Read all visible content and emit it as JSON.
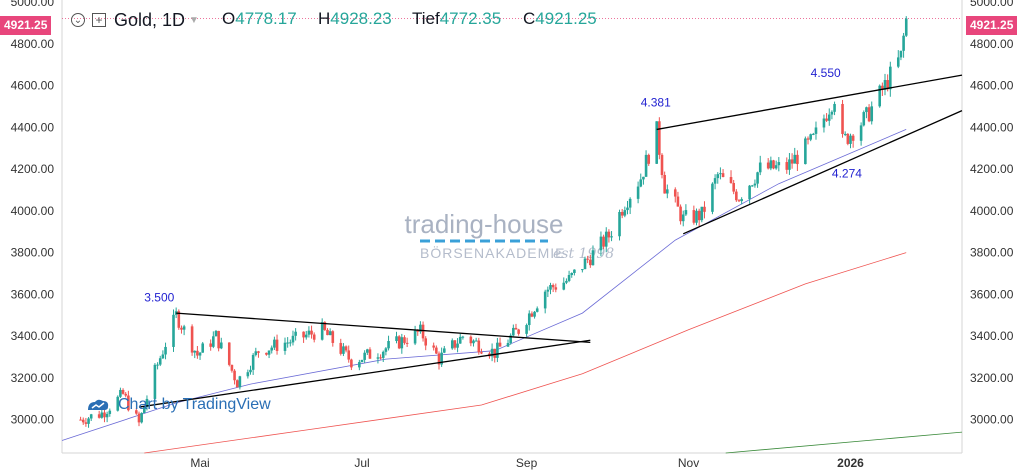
{
  "header": {
    "settings_icon": "chevron-circle-icon",
    "compare_icon": "plus-square-icon",
    "symbol": "Gold, 1D",
    "open_label": "O",
    "open": "4778.17",
    "high_label": "H",
    "high": "4928.23",
    "low_label": "Tief",
    "low": "4772.35",
    "close_label": "C",
    "close": "4921.25"
  },
  "last_price_tag": "4921.25",
  "watermark": {
    "brand": "trading-house",
    "sub": "BÖRSENAKADEMIE",
    "est": "est 1998"
  },
  "attribution": "Chart by TradingView",
  "annotations": [
    "3.500",
    "4.381",
    "4.550",
    "4.274"
  ],
  "colors": {
    "up": "#26a69a",
    "down": "#ef5350",
    "ma_short": "#6b6bd6",
    "ma_mid": "#ef5350",
    "ma_long": "#3a8a3a",
    "price_tag": "#e8467c"
  },
  "chart_data": {
    "type": "candlestick",
    "title": "Gold, 1D",
    "x_ticks": [
      "Mai",
      "Jul",
      "Sep",
      "Nov",
      "2026"
    ],
    "y_ticks": [
      "3000.00",
      "3200.00",
      "3400.00",
      "3600.00",
      "3800.00",
      "4000.00",
      "4200.00",
      "4400.00",
      "4600.00",
      "4800.00",
      "5000.00"
    ],
    "ylim": [
      2840,
      5010
    ],
    "legend": "none",
    "grid": false,
    "series": [
      {
        "name": "price",
        "anchors": [
          {
            "d": "2025-03-17",
            "v": 3000
          },
          {
            "d": "2025-03-25",
            "v": 3030
          },
          {
            "d": "2025-04-02",
            "v": 3120
          },
          {
            "d": "2025-04-08",
            "v": 2980
          },
          {
            "d": "2025-04-14",
            "v": 3230
          },
          {
            "d": "2025-04-22",
            "v": 3500
          },
          {
            "d": "2025-04-30",
            "v": 3310
          },
          {
            "d": "2025-05-07",
            "v": 3400
          },
          {
            "d": "2025-05-15",
            "v": 3180
          },
          {
            "d": "2025-05-23",
            "v": 3330
          },
          {
            "d": "2025-06-05",
            "v": 3380
          },
          {
            "d": "2025-06-16",
            "v": 3430
          },
          {
            "d": "2025-06-27",
            "v": 3280
          },
          {
            "d": "2025-07-08",
            "v": 3330
          },
          {
            "d": "2025-07-23",
            "v": 3420
          },
          {
            "d": "2025-07-30",
            "v": 3290
          },
          {
            "d": "2025-08-08",
            "v": 3400
          },
          {
            "d": "2025-08-20",
            "v": 3320
          },
          {
            "d": "2025-08-29",
            "v": 3430
          },
          {
            "d": "2025-09-08",
            "v": 3620
          },
          {
            "d": "2025-09-17",
            "v": 3670
          },
          {
            "d": "2025-09-25",
            "v": 3780
          },
          {
            "d": "2025-10-02",
            "v": 3880
          },
          {
            "d": "2025-10-08",
            "v": 4040
          },
          {
            "d": "2025-10-14",
            "v": 4160
          },
          {
            "d": "2025-10-20",
            "v": 4381
          },
          {
            "d": "2025-10-23",
            "v": 4120
          },
          {
            "d": "2025-10-30",
            "v": 3960
          },
          {
            "d": "2025-11-06",
            "v": 3980
          },
          {
            "d": "2025-11-12",
            "v": 4170
          },
          {
            "d": "2025-11-20",
            "v": 4070
          },
          {
            "d": "2025-11-28",
            "v": 4200
          },
          {
            "d": "2025-12-08",
            "v": 4210
          },
          {
            "d": "2025-12-18",
            "v": 4340
          },
          {
            "d": "2025-12-26",
            "v": 4550
          },
          {
            "d": "2025-12-29",
            "v": 4330
          },
          {
            "d": "2026-01-07",
            "v": 4450
          },
          {
            "d": "2026-01-14",
            "v": 4600
          },
          {
            "d": "2026-01-20",
            "v": 4740
          },
          {
            "d": "2026-01-22",
            "v": 4921
          }
        ]
      },
      {
        "name": "ma_short",
        "points": [
          {
            "d": "2025-03-10",
            "v": 2900
          },
          {
            "d": "2025-04-22",
            "v": 3080
          },
          {
            "d": "2025-05-20",
            "v": 3170
          },
          {
            "d": "2025-07-10",
            "v": 3290
          },
          {
            "d": "2025-08-20",
            "v": 3330
          },
          {
            "d": "2025-09-22",
            "v": 3510
          },
          {
            "d": "2025-10-27",
            "v": 3860
          },
          {
            "d": "2025-12-05",
            "v": 4130
          },
          {
            "d": "2026-01-22",
            "v": 4390
          }
        ]
      },
      {
        "name": "ma_mid",
        "points": [
          {
            "d": "2025-04-10",
            "v": 2840
          },
          {
            "d": "2025-06-10",
            "v": 2950
          },
          {
            "d": "2025-08-15",
            "v": 3070
          },
          {
            "d": "2025-09-22",
            "v": 3220
          },
          {
            "d": "2025-11-01",
            "v": 3430
          },
          {
            "d": "2025-12-15",
            "v": 3650
          },
          {
            "d": "2026-01-22",
            "v": 3800
          }
        ]
      },
      {
        "name": "ma_long",
        "points": [
          {
            "d": "2025-11-15",
            "v": 2840
          },
          {
            "d": "2026-02-12",
            "v": 2940
          }
        ]
      }
    ],
    "trendlines": [
      {
        "d1": "2025-04-22",
        "v1": 3510,
        "d2": "2025-09-25",
        "v2": 3370
      },
      {
        "d1": "2025-04-08",
        "v1": 3060,
        "d2": "2025-09-25",
        "v2": 3380
      },
      {
        "d1": "2025-10-20",
        "v1": 4390,
        "d2": "2026-02-12",
        "v2": 4650
      },
      {
        "d1": "2025-10-30",
        "v1": 3890,
        "d2": "2026-02-12",
        "v2": 4480
      }
    ]
  }
}
